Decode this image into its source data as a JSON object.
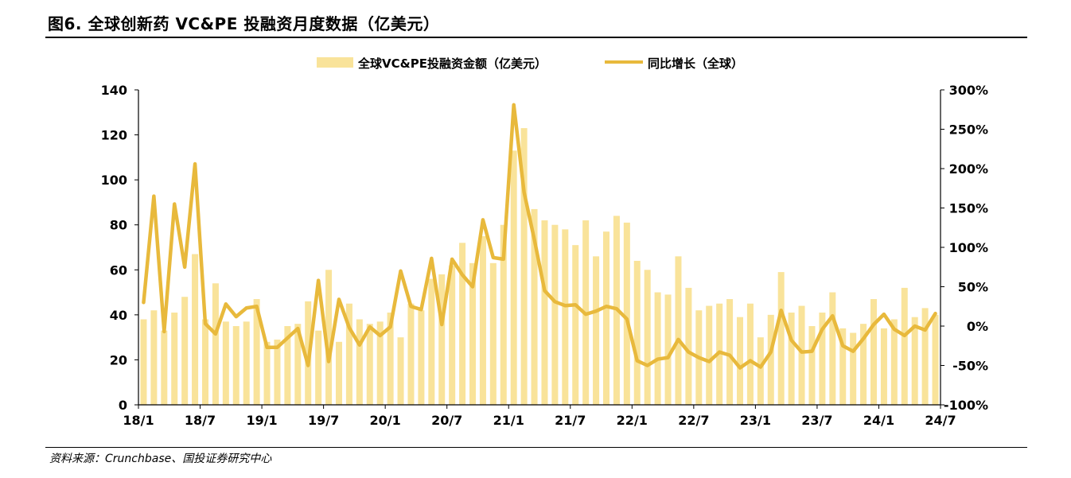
{
  "header": {
    "title": "图6. 全球创新药 VC&PE 投融资月度数据（亿美元）"
  },
  "footer": {
    "source": "资料来源：Crunchbase、国投证券研究中心"
  },
  "chart_data": {
    "type": "bar+line",
    "legend": {
      "position": "top-center",
      "bar_label": "全球VC&PE投融资金额（亿美元）",
      "line_label": "同比增长（全球）"
    },
    "colors": {
      "bar": "#F9E39A",
      "line": "#E8B93C"
    },
    "y_left": {
      "min": 0,
      "max": 140,
      "step": 20,
      "ticks": [
        "0",
        "20",
        "40",
        "60",
        "80",
        "100",
        "120",
        "140"
      ]
    },
    "y_right": {
      "min": -100,
      "max": 300,
      "step": 50,
      "ticks": [
        "-100%",
        "-50%",
        "0%",
        "50%",
        "100%",
        "150%",
        "200%",
        "250%",
        "300%"
      ]
    },
    "x_ticks": [
      {
        "index": 0,
        "label": "18/1"
      },
      {
        "index": 6,
        "label": "18/7"
      },
      {
        "index": 12,
        "label": "19/1"
      },
      {
        "index": 18,
        "label": "19/7"
      },
      {
        "index": 24,
        "label": "20/1"
      },
      {
        "index": 30,
        "label": "20/7"
      },
      {
        "index": 36,
        "label": "21/1"
      },
      {
        "index": 42,
        "label": "21/7"
      },
      {
        "index": 48,
        "label": "22/1"
      },
      {
        "index": 54,
        "label": "22/7"
      },
      {
        "index": 60,
        "label": "23/1"
      },
      {
        "index": 66,
        "label": "23/7"
      },
      {
        "index": 72,
        "label": "24/1"
      },
      {
        "index": 78,
        "label": "24/7"
      }
    ],
    "grid": false,
    "series": [
      {
        "name": "全球VC&PE投融资金额（亿美元）",
        "type": "bar",
        "axis": "left",
        "values": [
          38,
          42,
          33,
          41,
          48,
          67,
          38,
          54,
          37,
          35,
          37,
          47,
          28,
          29,
          35,
          36,
          46,
          33,
          60,
          28,
          45,
          38,
          36,
          37,
          41,
          30,
          45,
          42,
          56,
          58,
          62,
          72,
          63,
          75,
          63,
          80,
          113,
          123,
          87,
          82,
          80,
          78,
          71,
          82,
          66,
          77,
          84,
          81,
          64,
          60,
          50,
          49,
          66,
          52,
          42,
          44,
          45,
          47,
          39,
          45,
          30,
          40,
          59,
          41,
          44,
          35,
          41,
          50,
          34,
          32,
          36,
          47,
          34,
          38,
          52,
          39,
          43,
          40
        ]
      },
      {
        "name": "同比增长（全球）",
        "type": "line",
        "axis": "right",
        "values": [
          30,
          165,
          -7,
          155,
          75,
          206,
          3,
          -10,
          28,
          12,
          23,
          25,
          -27,
          -27,
          -15,
          -3,
          -50,
          58,
          -45,
          34,
          -2,
          -24,
          -1,
          -12,
          -1,
          70,
          25,
          21,
          86,
          2,
          85,
          65,
          50,
          135,
          87,
          85,
          281,
          170,
          110,
          45,
          31,
          26,
          27,
          15,
          19,
          25,
          22,
          9,
          -44,
          -50,
          -42,
          -40,
          -17,
          -33,
          -40,
          -45,
          -33,
          -37,
          -53,
          -44,
          -52,
          -33,
          20,
          -18,
          -33,
          -32,
          -4,
          13,
          -25,
          -32,
          -16,
          2,
          15,
          -4,
          -12,
          0,
          -5,
          16
        ]
      }
    ]
  }
}
